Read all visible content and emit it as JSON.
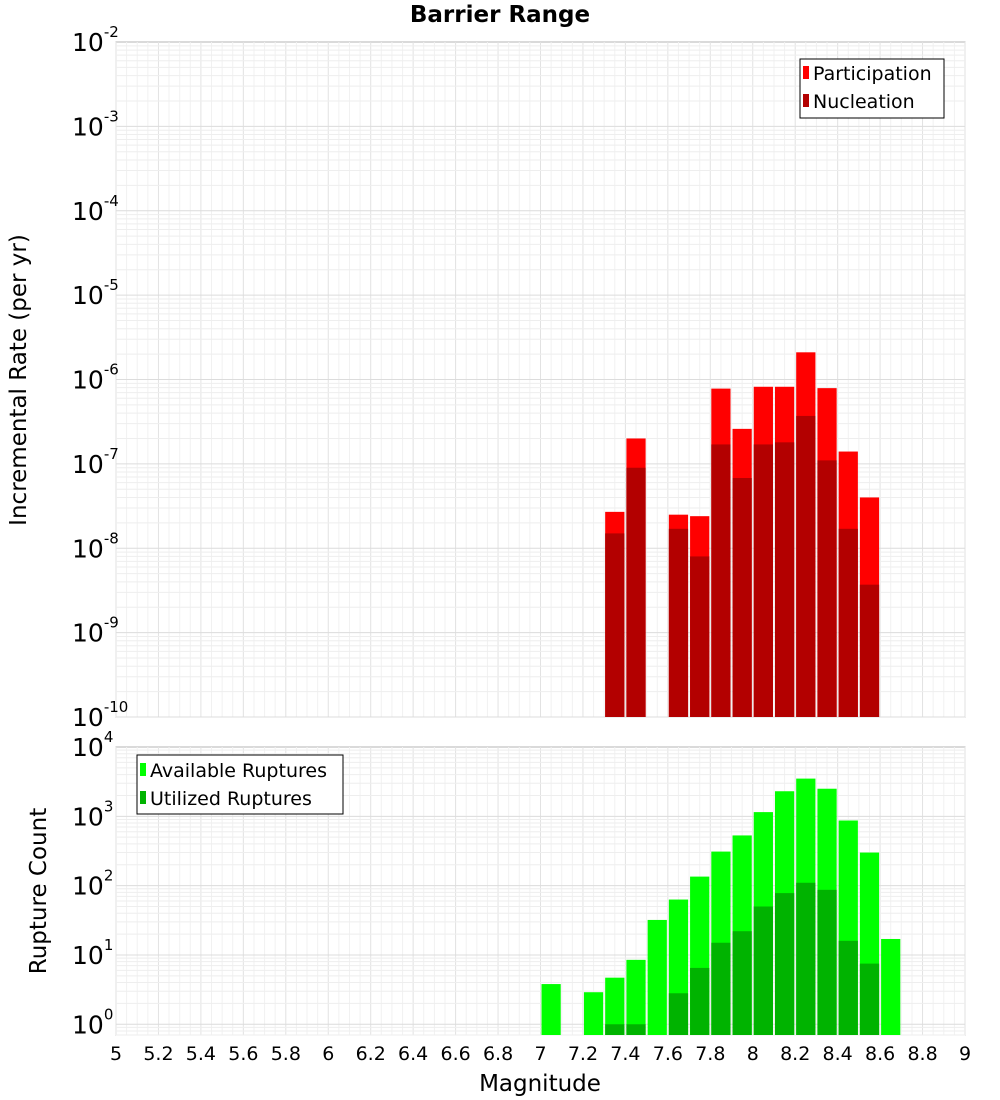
{
  "chart_data": [
    {
      "type": "bar",
      "title": "Barrier Range",
      "xlabel": "",
      "ylabel": "Incremental Rate (per yr)",
      "yscale": "log",
      "ylim": [
        1e-10,
        0.01
      ],
      "xlim": [
        5,
        9
      ],
      "y_tick_labels": [
        {
          "base": "10",
          "exp": "-10",
          "value": 1e-10
        },
        {
          "base": "10",
          "exp": "-9",
          "value": 1e-09
        },
        {
          "base": "10",
          "exp": "-8",
          "value": 1e-08
        },
        {
          "base": "10",
          "exp": "-7",
          "value": 1e-07
        },
        {
          "base": "10",
          "exp": "-6",
          "value": 1e-06
        },
        {
          "base": "10",
          "exp": "-5",
          "value": 1e-05
        },
        {
          "base": "10",
          "exp": "-4",
          "value": 0.0001
        },
        {
          "base": "10",
          "exp": "-3",
          "value": 0.001
        },
        {
          "base": "10",
          "exp": "-2",
          "value": 0.01
        }
      ],
      "grid": true,
      "legend_position": "top-right",
      "x": [
        7.3,
        7.4,
        7.6,
        7.7,
        7.8,
        7.9,
        8.0,
        8.1,
        8.2,
        8.3,
        8.4,
        8.5
      ],
      "series": [
        {
          "name": "Participation",
          "color": "#ff0000",
          "values": [
            2.7e-08,
            2e-07,
            2.5e-08,
            2.4e-08,
            7.8e-07,
            2.6e-07,
            8.2e-07,
            8.2e-07,
            2.1e-06,
            7.9e-07,
            1.4e-07,
            4e-08
          ]
        },
        {
          "name": "Nucleation",
          "color": "#b30000",
          "values": [
            1.5e-08,
            9e-08,
            1.7e-08,
            8e-09,
            1.7e-07,
            6.8e-08,
            1.7e-07,
            1.8e-07,
            3.7e-07,
            1.1e-07,
            1.7e-08,
            3.7e-09
          ]
        }
      ]
    },
    {
      "type": "bar",
      "title": "",
      "xlabel": "Magnitude",
      "ylabel": "Rupture Count",
      "yscale": "log",
      "ylim": [
        0.7,
        10000
      ],
      "xlim": [
        5,
        9
      ],
      "x_tick_labels": [
        "5",
        "5.2",
        "5.4",
        "5.6",
        "5.8",
        "6",
        "6.2",
        "6.4",
        "6.6",
        "6.8",
        "7",
        "7.2",
        "7.4",
        "7.6",
        "7.8",
        "8",
        "8.2",
        "8.4",
        "8.6",
        "8.8",
        "9"
      ],
      "y_tick_labels": [
        {
          "base": "10",
          "exp": "0",
          "value": 1
        },
        {
          "base": "10",
          "exp": "1",
          "value": 10
        },
        {
          "base": "10",
          "exp": "2",
          "value": 100
        },
        {
          "base": "10",
          "exp": "3",
          "value": 1000
        },
        {
          "base": "10",
          "exp": "4",
          "value": 10000
        }
      ],
      "grid": true,
      "legend_position": "top-left",
      "x": [
        7.0,
        7.2,
        7.3,
        7.4,
        7.5,
        7.6,
        7.7,
        7.8,
        7.9,
        8.0,
        8.1,
        8.2,
        8.3,
        8.4,
        8.5,
        8.6
      ],
      "series": [
        {
          "name": "Available Ruptures",
          "color": "#00ff00",
          "values": [
            3.8,
            2.9,
            4.7,
            8.5,
            32,
            63,
            135,
            310,
            530,
            1150,
            2300,
            3500,
            2500,
            870,
            300,
            17
          ]
        },
        {
          "name": "Utilized Ruptures",
          "color": "#00b300",
          "values": [
            null,
            null,
            1,
            1,
            null,
            2.8,
            6.5,
            15,
            22,
            50,
            78,
            110,
            87,
            16,
            7.5,
            null
          ]
        }
      ]
    }
  ]
}
